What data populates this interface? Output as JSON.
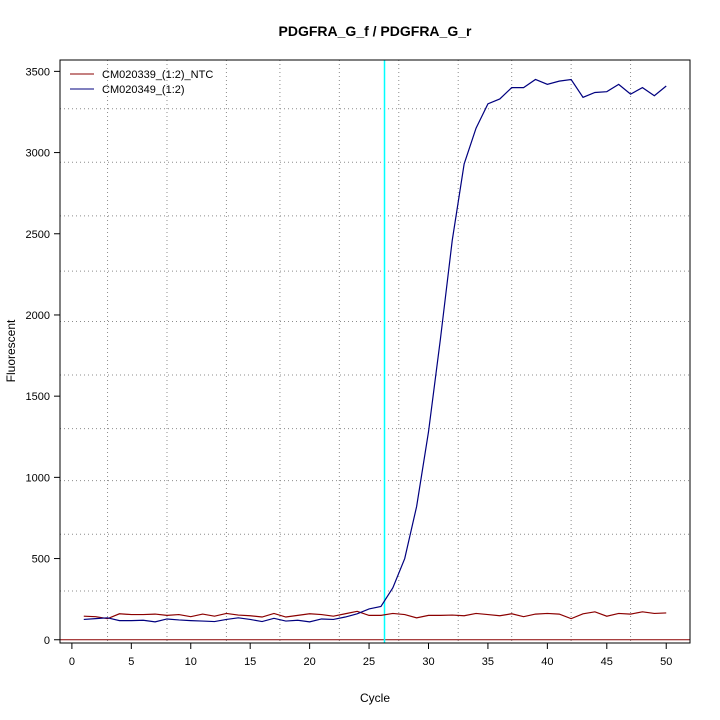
{
  "chart_data": {
    "type": "line",
    "title": "PDGFRA_G_f / PDGFRA_G_r",
    "xlabel": "Cycle",
    "ylabel": "Fluorescent",
    "xlim": [
      -1.0,
      52.0
    ],
    "ylim": [
      -20,
      3570
    ],
    "x_ticks": [
      0,
      5,
      10,
      15,
      20,
      25,
      30,
      35,
      40,
      45,
      50
    ],
    "y_ticks": [
      0,
      500,
      1000,
      1500,
      2000,
      2500,
      3000,
      3500
    ],
    "x_grid": [
      3,
      8,
      13,
      17.5,
      22.5,
      27.5,
      32.5,
      37,
      42,
      47
    ],
    "y_grid": [
      300,
      650,
      980,
      1300,
      1630,
      1960,
      2270,
      2610,
      2940,
      3270
    ],
    "grid": true,
    "legend": "top-left",
    "threshold_cycle": 26.3,
    "threshold_color": "#00ffff",
    "baseline_value": 0,
    "baseline_color": "#8b0000",
    "x": [
      1,
      2,
      3,
      4,
      5,
      6,
      7,
      8,
      9,
      10,
      11,
      12,
      13,
      14,
      15,
      16,
      17,
      18,
      19,
      20,
      21,
      22,
      23,
      24,
      25,
      26,
      27,
      28,
      29,
      30,
      31,
      32,
      33,
      34,
      35,
      36,
      37,
      38,
      39,
      40,
      41,
      42,
      43,
      44,
      45,
      46,
      47,
      48,
      49,
      50
    ],
    "series": [
      {
        "name": "CM020339_(1:2)_NTC",
        "color": "#8b0000",
        "values": [
          145,
          142,
          130,
          160,
          155,
          155,
          158,
          150,
          155,
          142,
          158,
          145,
          162,
          152,
          148,
          140,
          162,
          140,
          150,
          160,
          155,
          145,
          160,
          175,
          150,
          150,
          162,
          155,
          135,
          150,
          150,
          152,
          148,
          162,
          155,
          148,
          160,
          142,
          158,
          162,
          158,
          130,
          160,
          172,
          145,
          162,
          158,
          172,
          162,
          165
        ]
      },
      {
        "name": "CM020349_(1:2)",
        "color": "#00007f",
        "values": [
          125,
          130,
          135,
          118,
          118,
          120,
          110,
          128,
          122,
          118,
          115,
          112,
          125,
          135,
          125,
          112,
          132,
          115,
          120,
          110,
          128,
          125,
          140,
          160,
          190,
          205,
          320,
          500,
          820,
          1280,
          1850,
          2460,
          2930,
          3150,
          3300,
          3330,
          3400,
          3400,
          3450,
          3420,
          3440,
          3450,
          3340,
          3370,
          3375,
          3420,
          3360,
          3400,
          3350,
          3410
        ]
      }
    ]
  }
}
